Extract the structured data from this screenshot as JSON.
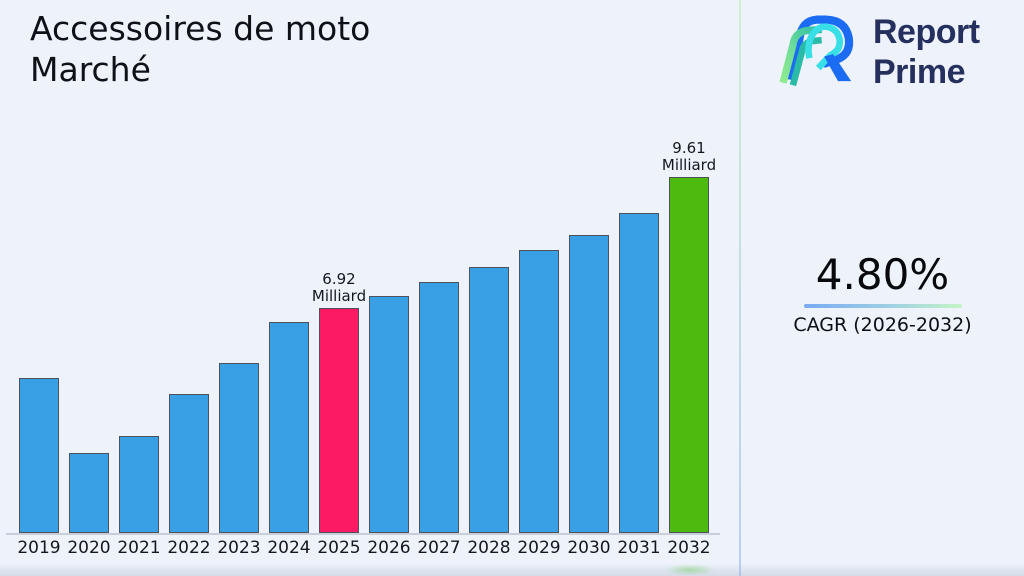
{
  "header": {
    "title_line1": "Accessoires de moto",
    "title_line2": "Marché"
  },
  "logo": {
    "name": "Report Prime",
    "line1": "Report",
    "line2": "Prime",
    "navy": "#25305e",
    "blue": "#1b6cf2",
    "cyan": "#38dfe6",
    "green_light": "#90ec8e",
    "teal": "#2abba8"
  },
  "panel": {
    "cagr_value": "4.80%",
    "cagr_label": "CAGR (2026-2032)"
  },
  "chart_data": {
    "type": "bar",
    "title": "Accessoires de moto Marché",
    "unit": "Milliard",
    "categories": [
      "2019",
      "2020",
      "2021",
      "2022",
      "2023",
      "2024",
      "2025",
      "2026",
      "2027",
      "2028",
      "2029",
      "2030",
      "2031",
      "2032"
    ],
    "values": [
      5.48,
      3.94,
      4.29,
      5.15,
      5.79,
      6.63,
      6.92,
      7.17,
      7.45,
      7.76,
      8.11,
      8.42,
      8.87,
      9.61
    ],
    "labeled_points": [
      {
        "category": "2025",
        "label_line1": "6.92",
        "label_line2": "Milliard"
      },
      {
        "category": "2032",
        "label_line1": "9.61",
        "label_line2": "Milliard"
      }
    ],
    "ylim": [
      2.3,
      9.61
    ],
    "xlabel": "",
    "ylabel": "",
    "grid": false,
    "legend": false,
    "colors": {
      "default": "#39a0e5",
      "2025": "#fb1a63",
      "2032": "#4cba0f",
      "bar_border": "#4c525a"
    }
  }
}
